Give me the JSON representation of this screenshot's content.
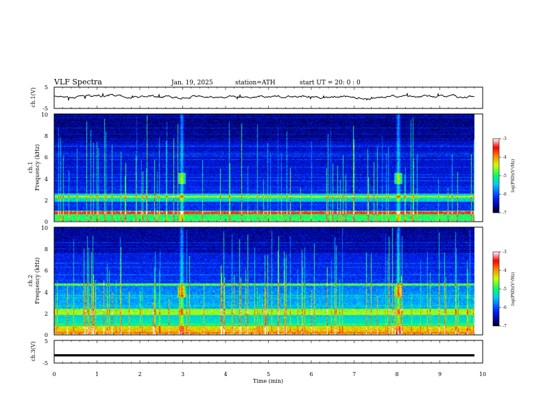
{
  "header": {
    "title": "VLF  Spectra",
    "date": "Jan. 19, 2025",
    "station": "station=ATH",
    "start": "start  UT  =   20: 0  : 0"
  },
  "chart_data": [
    {
      "type": "line",
      "name": "ch1-waveform",
      "ylabel": "ch.1(V)",
      "ylim": [
        -5,
        5
      ],
      "yticks": [
        "5",
        "-5"
      ],
      "xlim": [
        0,
        10
      ],
      "trace_color": "#000000"
    },
    {
      "type": "heatmap",
      "name": "ch1-spectrogram",
      "ylabel_lines": [
        "ch.1",
        "Frequency  (kHz)"
      ],
      "ylim": [
        0,
        10
      ],
      "yticks": [
        "0",
        "2",
        "4",
        "6",
        "8",
        "10"
      ],
      "xlim": [
        0,
        9.8
      ],
      "events_min": [
        2.97,
        8.02
      ],
      "colorbar": {
        "ticks": [
          "-3",
          "-4",
          "-5",
          "-6",
          "-7"
        ],
        "range": [
          -7,
          -3
        ],
        "label": "log(PSD)(V²/Hz)"
      }
    },
    {
      "type": "heatmap",
      "name": "ch2-spectrogram",
      "ylabel_lines": [
        "ch.2",
        "Frequency  (kHz)"
      ],
      "ylim": [
        0,
        10
      ],
      "yticks": [
        "0",
        "2",
        "4",
        "6",
        "8",
        "10"
      ],
      "xlim": [
        0,
        9.8
      ],
      "events_min": [
        2.97,
        8.02
      ],
      "colorbar": {
        "ticks": [
          "-3",
          "-4",
          "-5",
          "-6",
          "-7"
        ],
        "range": [
          -7,
          -3
        ],
        "label": "log(PSD)(V²/Hz)"
      }
    },
    {
      "type": "line",
      "name": "ch3-waveform",
      "ylabel": "ch.3(V)",
      "ylim": [
        -5,
        5
      ],
      "yticks": [
        "5",
        "-5"
      ],
      "level_v": -1.6,
      "xlim": [
        0,
        10
      ],
      "xlabel": "Time  (min)",
      "xticks": [
        "0",
        "1",
        "2",
        "3",
        "4",
        "5",
        "6",
        "7",
        "8",
        "9",
        "10"
      ]
    }
  ]
}
